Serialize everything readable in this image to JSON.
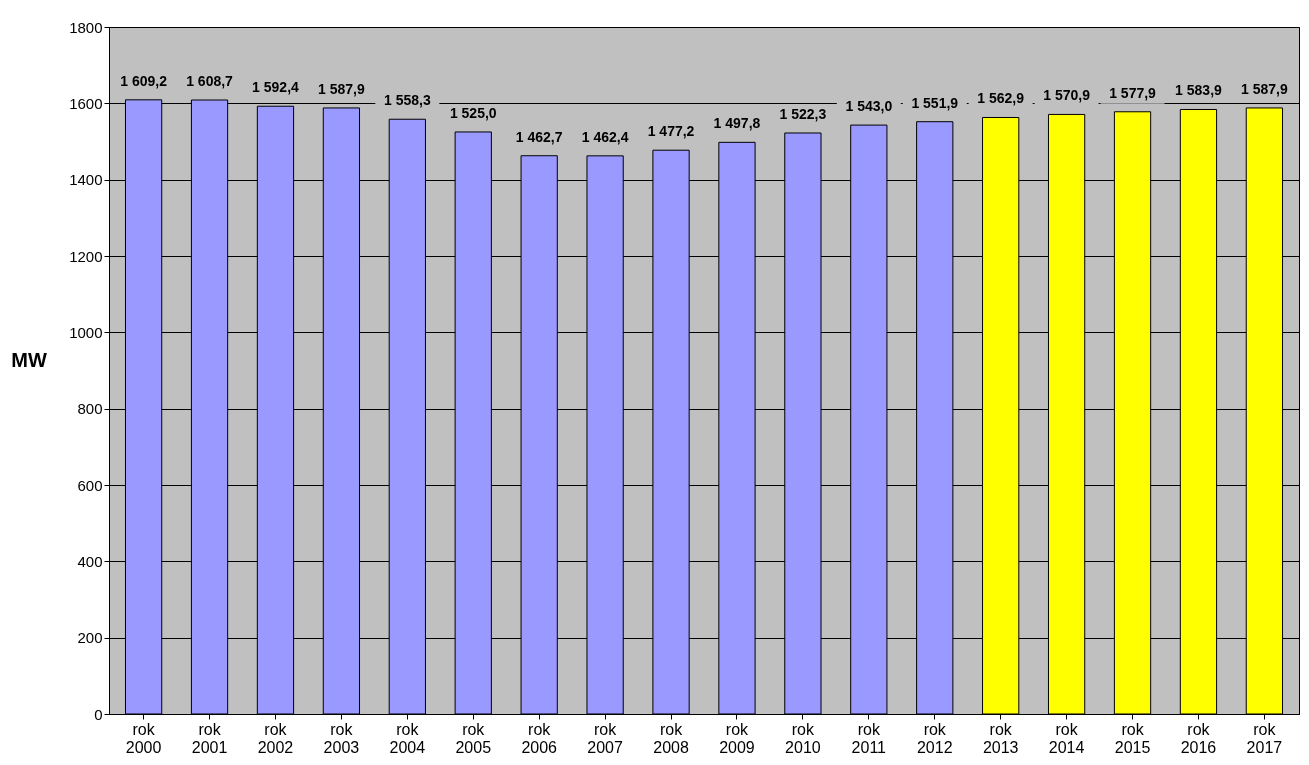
{
  "chart_data": {
    "type": "bar",
    "ylabel": "MW",
    "categories": [
      "rok 2000",
      "rok 2001",
      "rok 2002",
      "rok 2003",
      "rok 2004",
      "rok 2005",
      "rok 2006",
      "rok 2007",
      "rok 2008",
      "rok 2009",
      "rok 2010",
      "rok 2011",
      "rok 2012",
      "rok 2013",
      "rok 2014",
      "rok 2015",
      "rok 2016",
      "rok 2017"
    ],
    "values": [
      1609.2,
      1608.7,
      1592.4,
      1587.9,
      1558.3,
      1525.0,
      1462.7,
      1462.4,
      1477.2,
      1497.8,
      1522.3,
      1543.0,
      1551.9,
      1562.9,
      1570.9,
      1577.9,
      1583.9,
      1587.9
    ],
    "value_labels": [
      "1 609,2",
      "1 608,7",
      "1 592,4",
      "1 587,9",
      "1 558,3",
      "1 525,0",
      "1 462,7",
      "1 462,4",
      "1 477,2",
      "1 497,8",
      "1 522,3",
      "1 543,0",
      "1 551,9",
      "1 562,9",
      "1 570,9",
      "1 577,9",
      "1 583,9",
      "1 587,9"
    ],
    "colors": [
      "#9999ff",
      "#9999ff",
      "#9999ff",
      "#9999ff",
      "#9999ff",
      "#9999ff",
      "#9999ff",
      "#9999ff",
      "#9999ff",
      "#9999ff",
      "#9999ff",
      "#9999ff",
      "#9999ff",
      "#ffff00",
      "#ffff00",
      "#ffff00",
      "#ffff00",
      "#ffff00"
    ],
    "ylim": [
      0,
      1800
    ],
    "yticks": [
      0,
      200,
      400,
      600,
      800,
      1000,
      1200,
      1400,
      1600,
      1800
    ],
    "grid": "y"
  }
}
